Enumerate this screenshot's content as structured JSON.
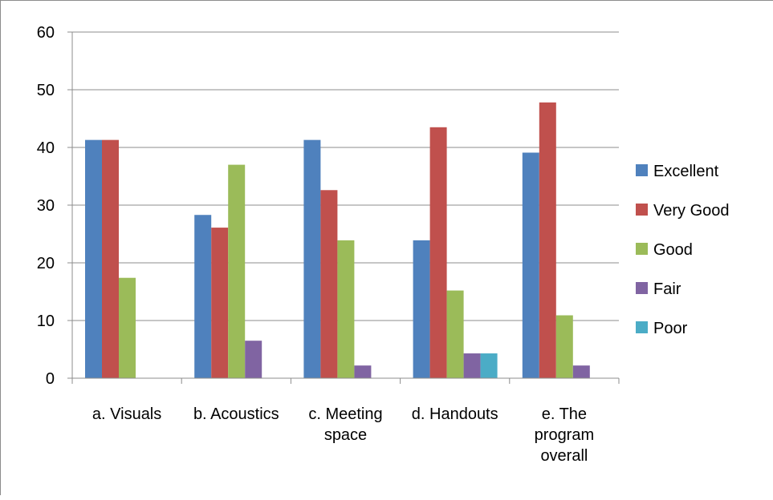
{
  "chart_data": {
    "type": "bar",
    "title": "",
    "xlabel": "",
    "ylabel": "",
    "ylim": [
      0,
      60
    ],
    "yticks": [
      0,
      10,
      20,
      30,
      40,
      50,
      60
    ],
    "categories": [
      [
        "a. Visuals"
      ],
      [
        "b. Acoustics"
      ],
      [
        "c. Meeting",
        "space"
      ],
      [
        "d. Handouts"
      ],
      [
        "e. The",
        "program",
        "overall"
      ]
    ],
    "series": [
      {
        "name": "Excellent",
        "color": "#4f81bd",
        "values": [
          41.3,
          28.3,
          41.3,
          23.9,
          39.1
        ]
      },
      {
        "name": "Very Good",
        "color": "#c0504d",
        "values": [
          41.3,
          26.1,
          32.6,
          43.5,
          47.8
        ]
      },
      {
        "name": "Good",
        "color": "#9bbb59",
        "values": [
          17.4,
          37.0,
          23.9,
          15.2,
          10.9
        ]
      },
      {
        "name": "Fair",
        "color": "#8064a2",
        "values": [
          0,
          6.5,
          2.2,
          4.3,
          2.2
        ]
      },
      {
        "name": "Poor",
        "color": "#4bacc6",
        "values": [
          0,
          0,
          0,
          4.3,
          0
        ]
      }
    ],
    "grid": true,
    "legend_position": "right"
  }
}
